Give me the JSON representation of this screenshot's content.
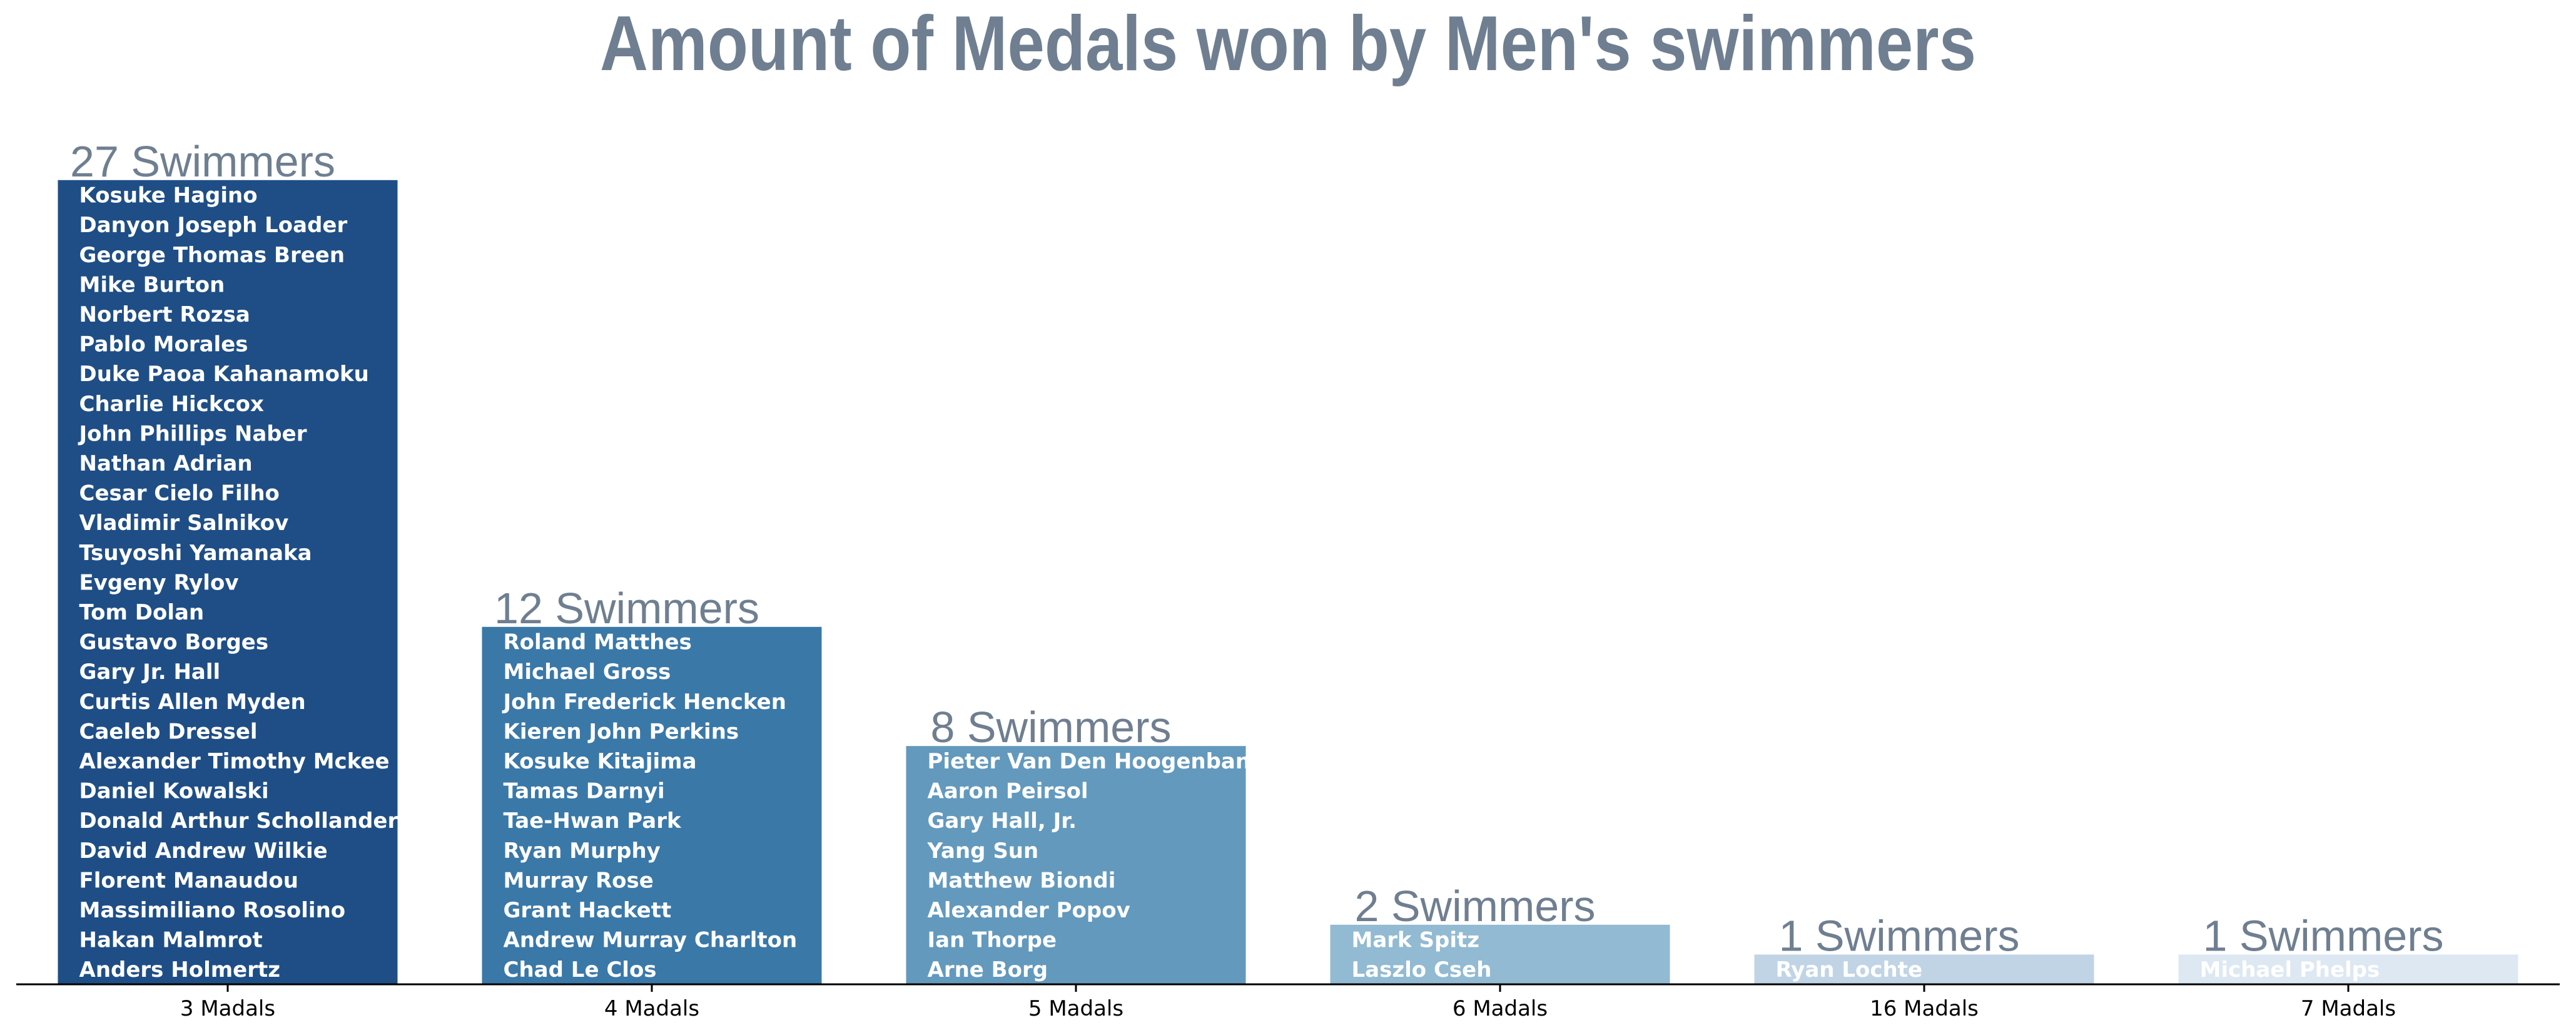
{
  "chart_data": {
    "type": "bar",
    "title": "Amount of Medals won by Men's swimmers",
    "categories": [
      "3 Madals",
      "4 Madals",
      "5 Madals",
      "6 Madals",
      "16 Madals",
      "7 Madals"
    ],
    "values": [
      27,
      12,
      8,
      2,
      1,
      1
    ],
    "bar_labels": [
      "27 Swimmers",
      "12 Swimmers",
      "8 Swimmers",
      "2 Swimmers",
      "1 Swimmers",
      "1 Swimmers"
    ],
    "colors": [
      "#1f4e86",
      "#3a78a8",
      "#6399bd",
      "#92bad2",
      "#c0d4e6",
      "#dde8f3"
    ],
    "names": [
      [
        "Kosuke Hagino",
        "Danyon Joseph Loader",
        "George Thomas Breen",
        "Mike Burton",
        "Norbert Rozsa",
        "Pablo Morales",
        "Duke Paoa Kahanamoku",
        "Charlie Hickcox",
        "John Phillips Naber",
        "Nathan Adrian",
        "Cesar Cielo Filho",
        "Vladimir Salnikov",
        "Tsuyoshi Yamanaka",
        "Evgeny Rylov",
        "Tom Dolan",
        "Gustavo Borges",
        "Gary Jr. Hall",
        "Curtis Allen Myden",
        "Caeleb Dressel",
        "Alexander Timothy Mckee",
        "Daniel Kowalski",
        "Donald Arthur Schollander",
        "David Andrew Wilkie",
        "Florent Manaudou",
        "Massimiliano Rosolino",
        "Hakan Malmrot",
        "Anders Holmertz"
      ],
      [
        "Roland Matthes",
        "Michael Gross",
        "John Frederick Hencken",
        "Kieren John Perkins",
        "Kosuke Kitajima",
        "Tamas Darnyi",
        "Tae-Hwan Park",
        "Ryan Murphy",
        "Murray Rose",
        "Grant Hackett",
        "Andrew Murray Charlton",
        "Chad Le Clos"
      ],
      [
        "Pieter Van Den Hoogenband",
        "Aaron Peirsol",
        "Gary Hall, Jr.",
        "Yang Sun",
        "Matthew Biondi",
        "Alexander Popov",
        "Ian Thorpe",
        "Arne Borg"
      ],
      [
        "Mark Spitz",
        "Laszlo Cseh"
      ],
      [
        "Ryan Lochte"
      ],
      [
        "Michael Phelps"
      ]
    ],
    "ylim": [
      0,
      27
    ],
    "grid": false,
    "legend": "none"
  }
}
